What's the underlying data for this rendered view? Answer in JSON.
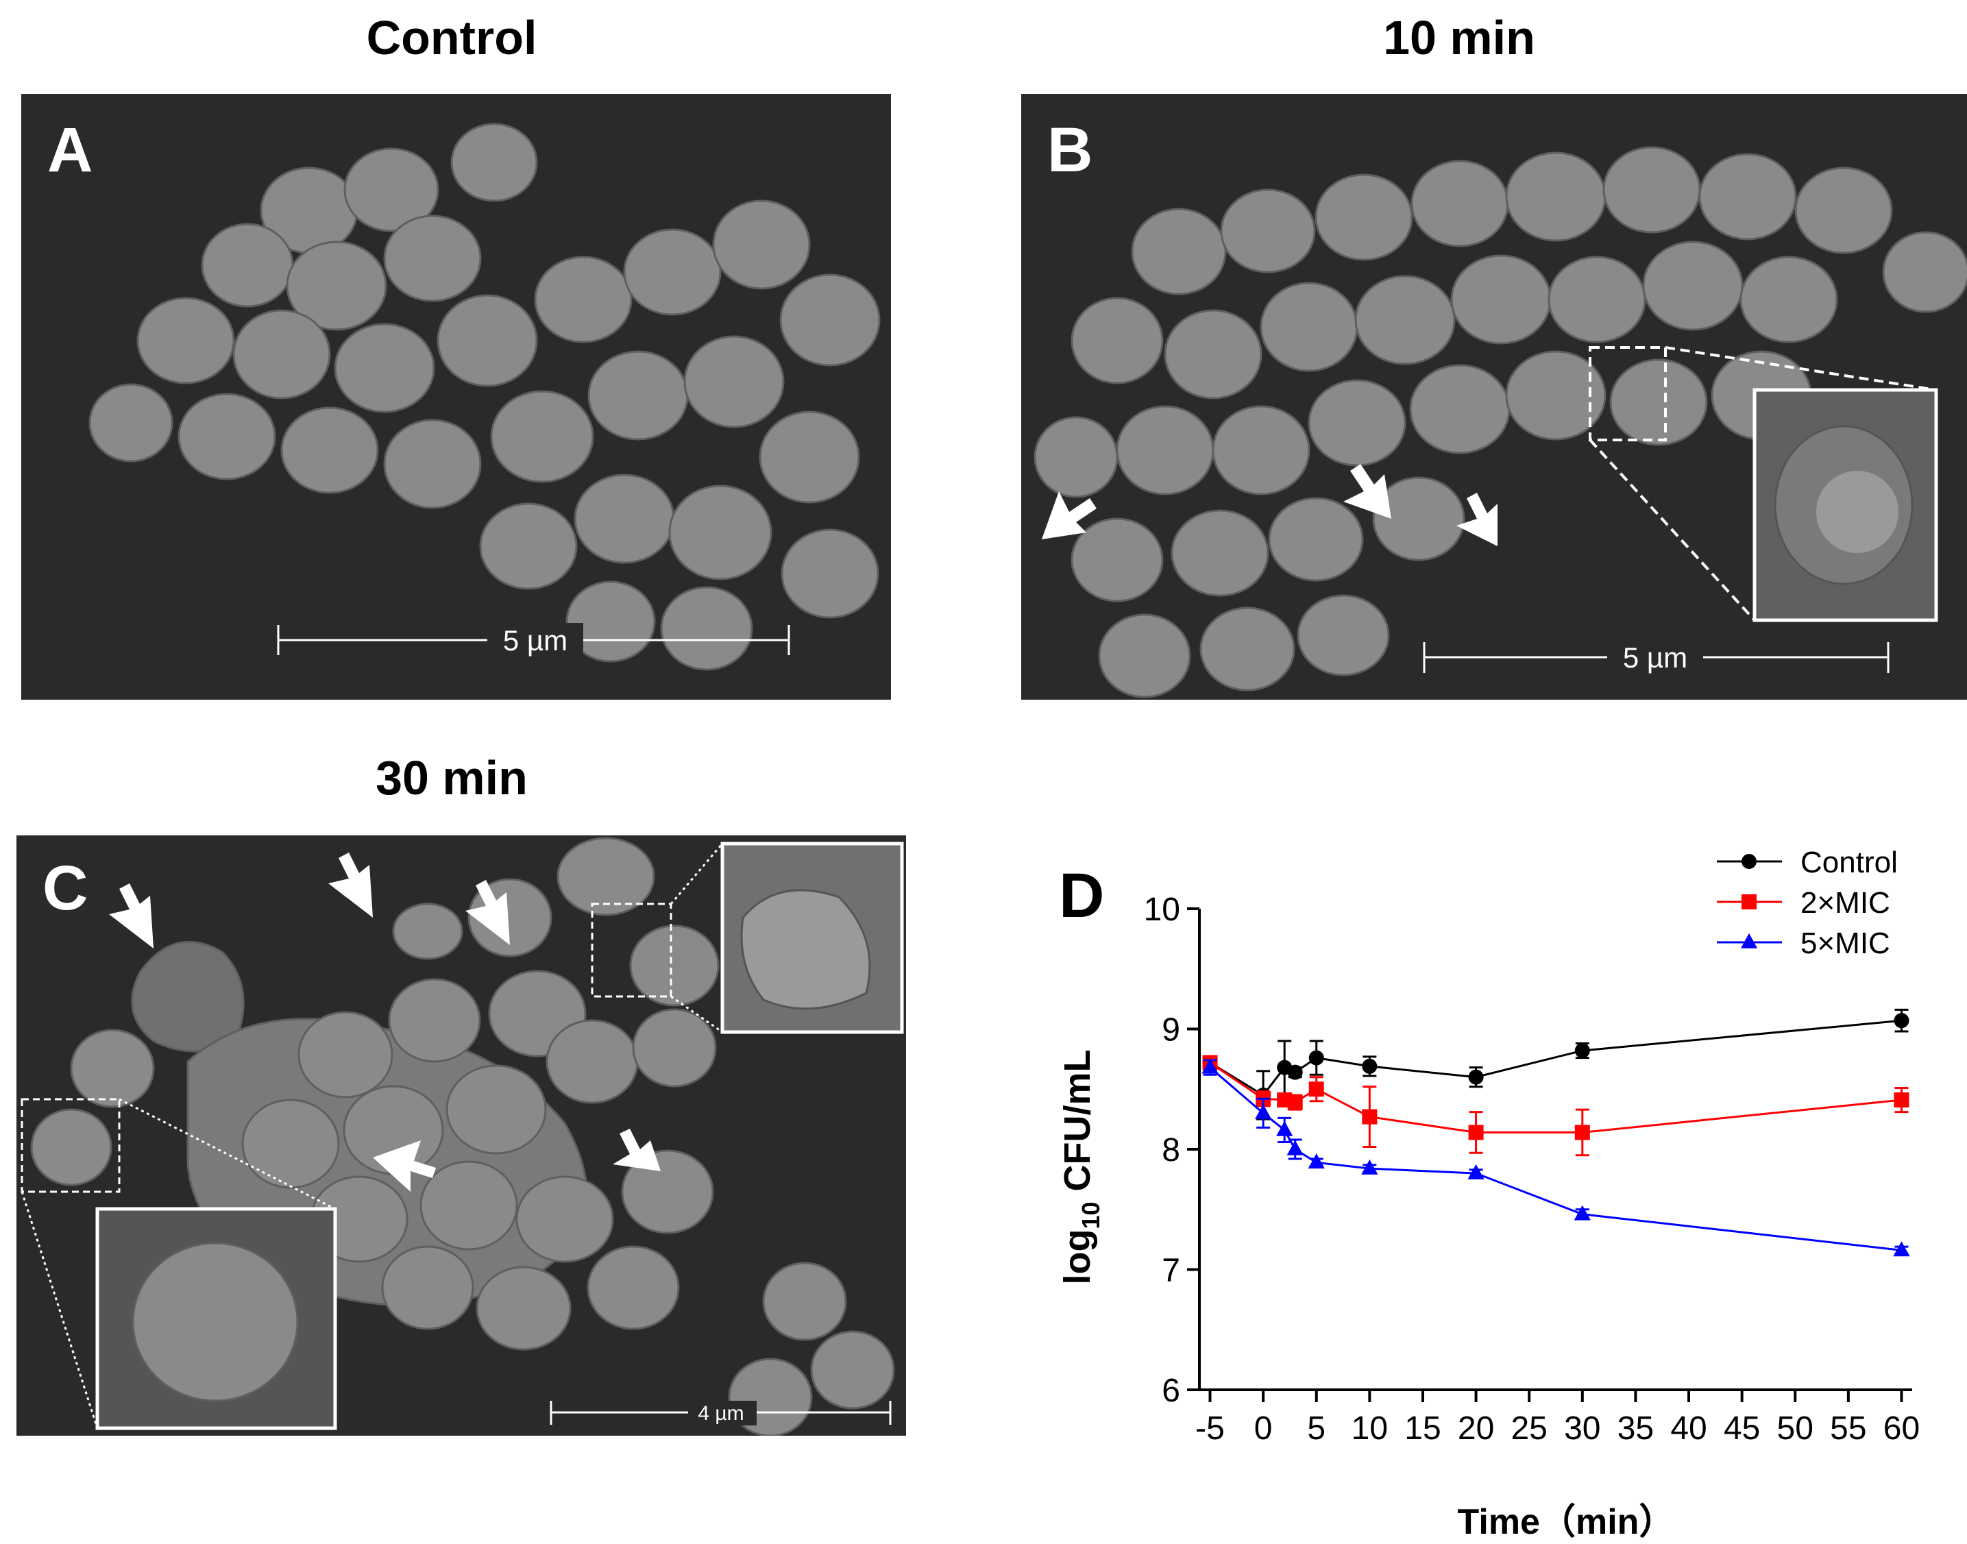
{
  "panels": {
    "A": {
      "letter": "A",
      "title": "Control",
      "scale": "5 µm"
    },
    "B": {
      "letter": "B",
      "title": "10 min",
      "scale": "5 µm"
    },
    "C": {
      "letter": "C",
      "title": "30 min",
      "scale": "4 µm"
    },
    "D": {
      "letter": "D"
    }
  },
  "colors": {
    "control": "#000000",
    "mic2": "#ff0000",
    "mic5": "#0000ff",
    "sem_bg": "#2a2a2a",
    "cell": "#8a8a8a"
  },
  "chart_data": {
    "type": "line",
    "xlabel": "Time（min）",
    "ylabel_main": "log",
    "ylabel_sub": "10",
    "ylabel_rest": " CFU/mL",
    "xlim": [
      -6,
      61
    ],
    "ylim": [
      6,
      10
    ],
    "xticks": [
      -5,
      0,
      5,
      10,
      15,
      20,
      25,
      30,
      35,
      40,
      45,
      50,
      55,
      60
    ],
    "yticks": [
      6,
      7,
      8,
      9,
      10
    ],
    "legend_position": "top-right",
    "series": [
      {
        "name": "Control",
        "marker": "circle",
        "color": "#000000",
        "x": [
          -5,
          0,
          2,
          3,
          5,
          10,
          20,
          30,
          60
        ],
        "y": [
          8.72,
          8.45,
          8.68,
          8.64,
          8.76,
          8.69,
          8.6,
          8.82,
          9.07
        ],
        "err": [
          0.05,
          0.2,
          0.22,
          0.04,
          0.14,
          0.08,
          0.08,
          0.06,
          0.09
        ]
      },
      {
        "name": "2×MIC",
        "marker": "square",
        "color": "#ff0000",
        "x": [
          -5,
          0,
          2,
          3,
          5,
          10,
          20,
          30,
          60
        ],
        "y": [
          8.72,
          8.42,
          8.41,
          8.39,
          8.5,
          8.27,
          8.14,
          8.14,
          8.41
        ],
        "err": [
          0.04,
          0.06,
          0.04,
          0.06,
          0.1,
          0.25,
          0.17,
          0.19,
          0.1
        ]
      },
      {
        "name": "5×MIC",
        "marker": "triangle",
        "color": "#0000ff",
        "x": [
          -5,
          0,
          2,
          3,
          5,
          10,
          20,
          30,
          60
        ],
        "y": [
          8.68,
          8.3,
          8.16,
          8.0,
          7.89,
          7.84,
          7.8,
          7.46,
          7.16
        ],
        "err": [
          0.06,
          0.12,
          0.1,
          0.08,
          0.03,
          0.03,
          0.03,
          0.04,
          0.03
        ]
      }
    ]
  }
}
